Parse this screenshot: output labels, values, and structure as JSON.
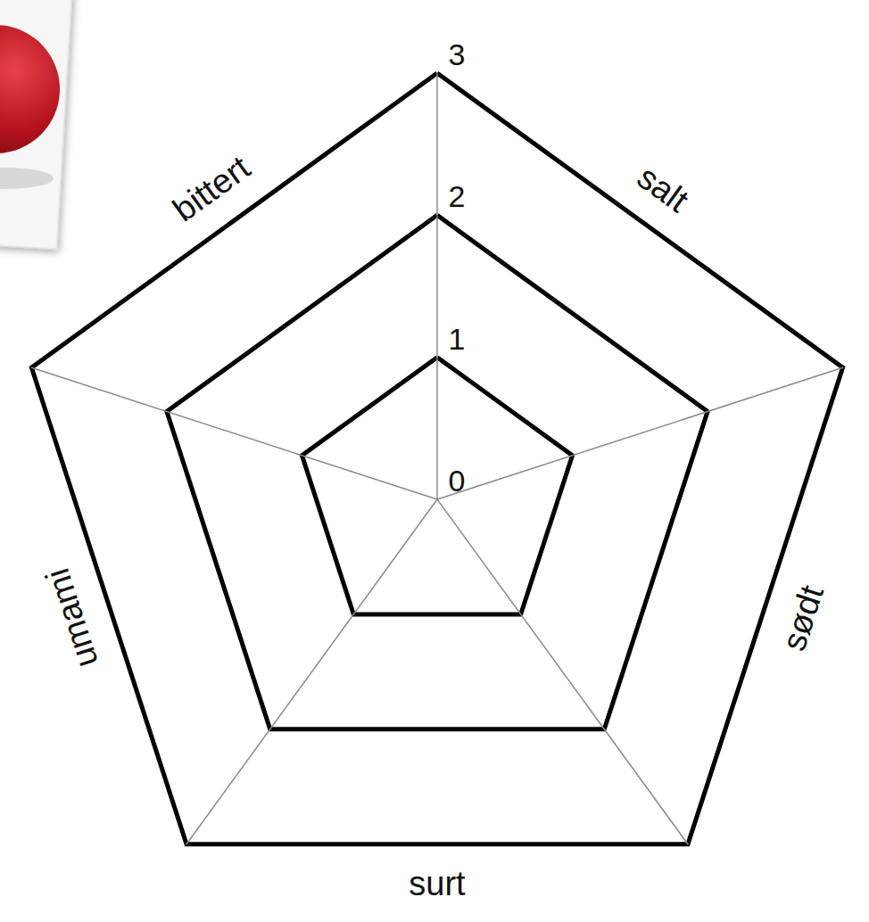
{
  "chart_data": {
    "type": "radar",
    "categories": [
      "salt",
      "sødt",
      "surt",
      "umami",
      "bittert"
    ],
    "ylim": [
      0,
      3
    ],
    "yticks": [
      0,
      1,
      2,
      3
    ],
    "grid": true
  }
}
